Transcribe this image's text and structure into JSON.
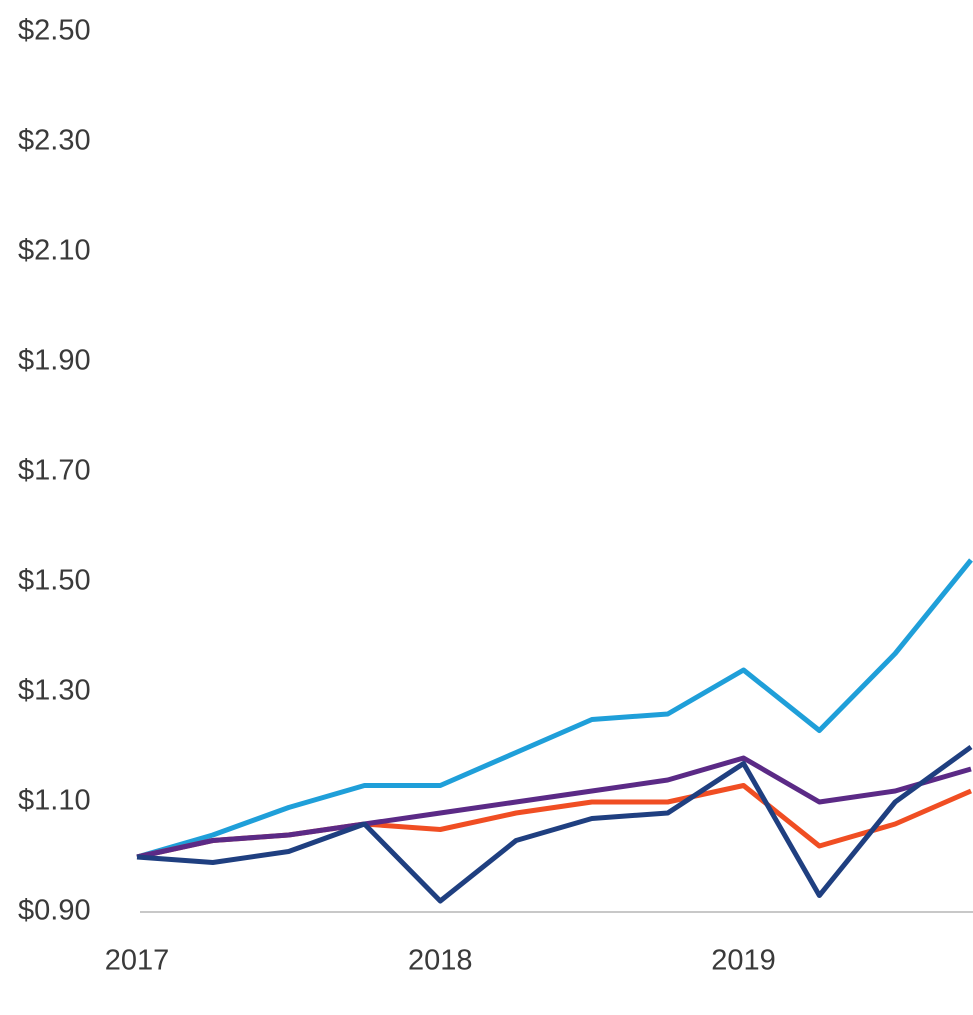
{
  "chart_data": {
    "type": "line",
    "x": [
      2017,
      2017.25,
      2017.5,
      2017.75,
      2018,
      2018.25,
      2018.5,
      2018.75,
      2019,
      2019.25,
      2019.5,
      2019.75
    ],
    "series": [
      {
        "color": "#1f9fd9",
        "values": [
          1.0,
          1.04,
          1.09,
          1.13,
          1.13,
          1.19,
          1.25,
          1.26,
          1.34,
          1.23,
          1.37,
          1.54
        ]
      },
      {
        "color": "#f04e23",
        "values": [
          1.0,
          1.03,
          1.04,
          1.06,
          1.05,
          1.08,
          1.1,
          1.1,
          1.13,
          1.02,
          1.06,
          1.12
        ]
      },
      {
        "color": "#5b2a86",
        "values": [
          1.0,
          1.03,
          1.04,
          1.06,
          1.08,
          1.1,
          1.12,
          1.14,
          1.18,
          1.1,
          1.12,
          1.16
        ]
      },
      {
        "color": "#1f3f80",
        "values": [
          1.0,
          0.99,
          1.01,
          1.06,
          0.92,
          1.03,
          1.07,
          1.08,
          1.17,
          0.93,
          1.1,
          1.2
        ]
      }
    ],
    "xlim": [
      2017,
      2019.75
    ],
    "xticks": [
      2017,
      2018,
      2019
    ],
    "ylim": [
      0.9,
      2.5
    ],
    "yticks": [
      {
        "value": 0.9,
        "label": "$0.90"
      },
      {
        "value": 1.1,
        "label": "$1.10"
      },
      {
        "value": 1.3,
        "label": "$1.30"
      },
      {
        "value": 1.5,
        "label": "$1.50"
      },
      {
        "value": 1.7,
        "label": "$1.70"
      },
      {
        "value": 1.9,
        "label": "$1.90"
      },
      {
        "value": 2.1,
        "label": "$2.10"
      },
      {
        "value": 2.3,
        "label": "$2.30"
      },
      {
        "value": 2.5,
        "label": "$2.50"
      }
    ],
    "grid": false
  }
}
